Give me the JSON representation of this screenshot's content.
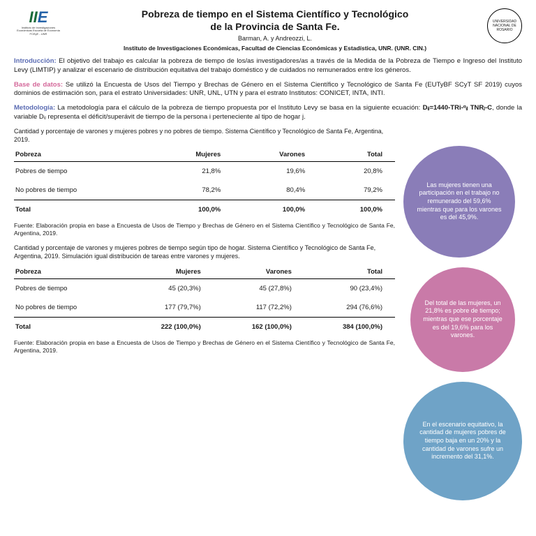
{
  "header": {
    "logo_left_small": "Instituto de Investigaciones Económicas\nEscuela de Economía\nFCEyE - UNR",
    "logo_right_text": "UNIVERSIDAD NACIONAL DE ROSARIO",
    "title_l1": "Pobreza de tiempo en el Sistema Científico y Tecnológico",
    "title_l2": "de la Provincia de Santa Fe.",
    "authors": "Barman, A. y Andreozzi, L.",
    "institute": "Instituto de Investigaciones Económicas, Facultad de Ciencias Económicas y Estadística, UNR. (UNR. CIN.)"
  },
  "labels": {
    "intro": "Introducción:",
    "base": "Base de datos:",
    "meto": "Metodología:"
  },
  "paras": {
    "intro": " El objetivo del trabajo es calcular la pobreza de tiempo de los/as investigadores/as a través de la Medida de la Pobreza de Tiempo e Ingreso del Instituto Levy (LIMTIP) y analizar el escenario de distribución equitativa del trabajo doméstico y de cuidados no remunerados  entre los géneros.",
    "base": " Se utilizó la Encuesta de Usos del Tiempo y Brechas de Género en el Sistema Científico y Tecnológico de Santa Fe (EUTyBF SCyT SF 2019) cuyos dominios de estimación son, para el estrato Universidades: UNR, UNL, UTN y para el estrato Institutos: CONICET, INTA, INTI.",
    "meto_a": " La metodología para el cálculo de la pobreza de tiempo propuesta por el Instituto Levy se basa en la siguiente ecuación: ",
    "meto_eq": "Dᵢⱼ=1440-TRi-ᵅᵢⱼ TNRⱼ-C",
    "meto_b": ", donde la variable Dᵢⱼ representa el déficit/superávit de tiempo de la persona i perteneciente al tipo de hogar j."
  },
  "table1": {
    "caption": "Cantidad y porcentaje de varones y mujeres pobres y no pobres de tiempo. Sistema Científico y Tecnológico de Santa Fe, Argentina, 2019.",
    "col0": "Pobreza",
    "col1": "Mujeres",
    "col2": "Varones",
    "col3": "Total",
    "r1c0": "Pobres de tiempo",
    "r1c1": "21,8%",
    "r1c2": "19,6%",
    "r1c3": "20,8%",
    "r2c0": "No pobres de tiempo",
    "r2c1": "78,2%",
    "r2c2": "80,4%",
    "r2c3": "79,2%",
    "r3c0": "Total",
    "r3c1": "100,0%",
    "r3c2": "100,0%",
    "r3c3": "100,0%",
    "fuente": "Fuente: Elaboración propia en base a Encuesta de Usos de Tiempo y Brechas de Género en el Sistema Científico y Tecnológico de Santa Fe, Argentina, 2019."
  },
  "table2": {
    "caption": "Cantidad y porcentaje de varones y mujeres pobres de tiempo según tipo de hogar. Sistema Científico y Tecnológico de Santa Fe, Argentina, 2019. Simulación igual distribución de tareas entre varones y mujeres.",
    "col0": "Pobreza",
    "col1": "Mujeres",
    "col2": "Varones",
    "col3": "Total",
    "r1c0": "Pobres de tiempo",
    "r1c1": "45 (20,3%)",
    "r1c2": "45 (27,8%)",
    "r1c3": "90 (23,4%)",
    "r2c0": "No pobres de tiempo",
    "r2c1": "177 (79,7%)",
    "r2c2": "117 (72,2%)",
    "r2c3": "294 (76,6%)",
    "r3c0": "Total",
    "r3c1": "222 (100,0%)",
    "r3c2": "162 (100,0%)",
    "r3c3": "384 (100,0%)",
    "fuente": "Fuente: Elaboración propia en base a Encuesta de Usos de Tiempo y Brechas de Género en el Sistema Científico y Tecnológico de Santa Fe, Argentina, 2019."
  },
  "bubbles": {
    "b1": "Las mujeres tienen una participación en el trabajo no remunerado del 59,6% mientras que para los varones es del 45,9%.",
    "b2": "Del total de las mujeres, un 21,8% es pobre de tiempo; mientras que ese porcentaje es del 19,6% para los varones.",
    "b3": "En el escenario equitativo, la cantidad de mujeres pobres de tiempo baja en un 20% y la cantidad de varones sufre un incremento del 31,1%."
  }
}
